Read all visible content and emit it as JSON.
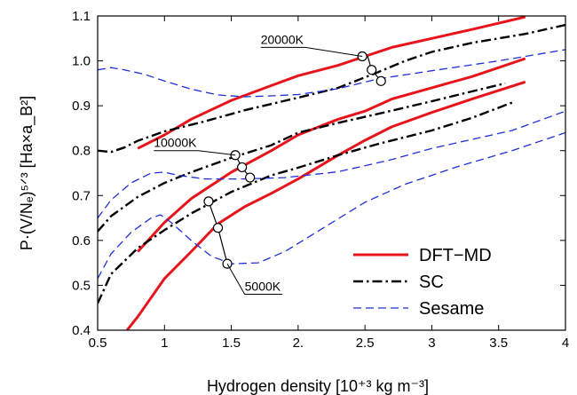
{
  "chart_data": {
    "type": "line",
    "xlabel": "Hydrogen density [10⁺³ kg m⁻³]",
    "ylabel": "P·(V/Nₑ)⁵ᐟ³ [Ha×a_B²]",
    "xlim": [
      0.5,
      4.0
    ],
    "ylim": [
      0.4,
      1.1
    ],
    "x_ticks": [
      {
        "v": 0.5,
        "label": "0.5"
      },
      {
        "v": 1.0,
        "label": "1"
      },
      {
        "v": 1.5,
        "label": "1.5"
      },
      {
        "v": 2.0,
        "label": "2."
      },
      {
        "v": 2.5,
        "label": "2.5"
      },
      {
        "v": 3.0,
        "label": "3"
      },
      {
        "v": 3.5,
        "label": "3.5"
      },
      {
        "v": 4.0,
        "label": "4"
      }
    ],
    "y_ticks": [
      {
        "v": 0.4,
        "label": "0.4"
      },
      {
        "v": 0.5,
        "label": "0.5"
      },
      {
        "v": 0.6,
        "label": "0.6"
      },
      {
        "v": 0.7,
        "label": "0.7"
      },
      {
        "v": 0.8,
        "label": "0.8"
      },
      {
        "v": 0.9,
        "label": "0.9"
      },
      {
        "v": 1.0,
        "label": "1.0"
      },
      {
        "v": 1.1,
        "label": "1.1"
      }
    ],
    "legend_position": "bottom-right",
    "legend": [
      {
        "label": "DFT−MD",
        "style": "solid",
        "color": "#e8141b"
      },
      {
        "label": "SC",
        "style": "dashdot",
        "color": "#000000"
      },
      {
        "label": "Sesame",
        "style": "dashed",
        "color": "#1f2fd8"
      }
    ],
    "series": [
      {
        "name": "DFT−MD",
        "color": "#e8141b",
        "style": "solid",
        "points": [
          [
            0.8,
            0.805
          ],
          [
            1.0,
            0.835
          ],
          [
            1.2,
            0.87
          ],
          [
            1.5,
            0.912
          ],
          [
            1.8,
            0.945
          ],
          [
            2.0,
            0.967
          ],
          [
            2.3,
            0.99
          ],
          [
            2.5,
            1.01
          ],
          [
            2.7,
            1.03
          ],
          [
            3.0,
            1.05
          ],
          [
            3.3,
            1.07
          ],
          [
            3.7,
            1.098
          ]
        ]
      },
      {
        "name": "DFT−MD",
        "color": "#e8141b",
        "style": "solid",
        "points": [
          [
            0.8,
            0.575
          ],
          [
            1.0,
            0.64
          ],
          [
            1.2,
            0.693
          ],
          [
            1.5,
            0.752
          ],
          [
            1.8,
            0.8
          ],
          [
            2.0,
            0.835
          ],
          [
            2.3,
            0.87
          ],
          [
            2.5,
            0.888
          ],
          [
            2.7,
            0.915
          ],
          [
            3.0,
            0.94
          ],
          [
            3.3,
            0.965
          ],
          [
            3.7,
            1.005
          ]
        ]
      },
      {
        "name": "DFT−MD",
        "color": "#e8141b",
        "style": "solid",
        "points": [
          [
            0.72,
            0.4
          ],
          [
            0.8,
            0.43
          ],
          [
            1.0,
            0.515
          ],
          [
            1.2,
            0.575
          ],
          [
            1.4,
            0.637
          ],
          [
            1.6,
            0.675
          ],
          [
            1.8,
            0.705
          ],
          [
            2.0,
            0.737
          ],
          [
            2.3,
            0.79
          ],
          [
            2.5,
            0.823
          ],
          [
            2.7,
            0.853
          ],
          [
            3.0,
            0.885
          ],
          [
            3.3,
            0.915
          ],
          [
            3.7,
            0.953
          ]
        ]
      },
      {
        "name": "SC",
        "color": "#000000",
        "style": "dashdot",
        "points": [
          [
            0.5,
            0.8
          ],
          [
            0.6,
            0.797
          ],
          [
            0.7,
            0.807
          ],
          [
            0.8,
            0.822
          ],
          [
            1.0,
            0.843
          ],
          [
            1.3,
            0.865
          ],
          [
            1.6,
            0.89
          ],
          [
            2.0,
            0.918
          ],
          [
            2.3,
            0.94
          ],
          [
            2.6,
            0.975
          ],
          [
            2.8,
            1.0
          ],
          [
            3.0,
            1.02
          ],
          [
            3.3,
            1.04
          ],
          [
            3.7,
            1.06
          ],
          [
            4.0,
            1.08
          ]
        ]
      },
      {
        "name": "SC",
        "color": "#000000",
        "style": "dashdot",
        "points": [
          [
            0.5,
            0.62
          ],
          [
            0.6,
            0.654
          ],
          [
            0.8,
            0.697
          ],
          [
            1.0,
            0.728
          ],
          [
            1.2,
            0.752
          ],
          [
            1.5,
            0.784
          ],
          [
            1.8,
            0.812
          ],
          [
            2.0,
            0.84
          ],
          [
            2.3,
            0.862
          ],
          [
            2.6,
            0.882
          ],
          [
            3.0,
            0.91
          ],
          [
            3.3,
            0.932
          ],
          [
            3.55,
            0.95
          ]
        ]
      },
      {
        "name": "SC",
        "color": "#000000",
        "style": "dashdot",
        "points": [
          [
            0.5,
            0.46
          ],
          [
            0.6,
            0.525
          ],
          [
            0.8,
            0.583
          ],
          [
            1.0,
            0.623
          ],
          [
            1.2,
            0.66
          ],
          [
            1.5,
            0.708
          ],
          [
            1.8,
            0.745
          ],
          [
            2.0,
            0.762
          ],
          [
            2.3,
            0.79
          ],
          [
            2.6,
            0.815
          ],
          [
            3.0,
            0.845
          ],
          [
            3.3,
            0.873
          ],
          [
            3.6,
            0.907
          ]
        ]
      },
      {
        "name": "Sesame",
        "color": "#1f2fd8",
        "style": "dashed",
        "points": [
          [
            0.5,
            0.98
          ],
          [
            0.6,
            0.985
          ],
          [
            0.7,
            0.98
          ],
          [
            0.85,
            0.97
          ],
          [
            1.0,
            0.955
          ],
          [
            1.2,
            0.937
          ],
          [
            1.4,
            0.924
          ],
          [
            1.6,
            0.92
          ],
          [
            1.8,
            0.922
          ],
          [
            2.0,
            0.925
          ],
          [
            2.3,
            0.938
          ],
          [
            2.6,
            0.96
          ],
          [
            3.0,
            0.978
          ],
          [
            3.5,
            1.0
          ],
          [
            4.0,
            1.025
          ]
        ]
      },
      {
        "name": "Sesame",
        "color": "#1f2fd8",
        "style": "dashed",
        "points": [
          [
            0.5,
            0.65
          ],
          [
            0.6,
            0.69
          ],
          [
            0.75,
            0.728
          ],
          [
            0.9,
            0.75
          ],
          [
            1.0,
            0.752
          ],
          [
            1.1,
            0.745
          ],
          [
            1.3,
            0.737
          ],
          [
            1.6,
            0.737
          ],
          [
            1.9,
            0.74
          ],
          [
            2.3,
            0.753
          ],
          [
            2.7,
            0.78
          ],
          [
            3.0,
            0.805
          ],
          [
            3.3,
            0.825
          ],
          [
            3.6,
            0.845
          ],
          [
            4.0,
            0.888
          ]
        ]
      },
      {
        "name": "Sesame",
        "color": "#1f2fd8",
        "style": "dashed",
        "points": [
          [
            0.5,
            0.515
          ],
          [
            0.6,
            0.57
          ],
          [
            0.75,
            0.618
          ],
          [
            0.9,
            0.65
          ],
          [
            0.97,
            0.657
          ],
          [
            1.05,
            0.64
          ],
          [
            1.2,
            0.6
          ],
          [
            1.35,
            0.565
          ],
          [
            1.5,
            0.548
          ],
          [
            1.7,
            0.55
          ],
          [
            1.9,
            0.575
          ],
          [
            2.2,
            0.63
          ],
          [
            2.5,
            0.685
          ],
          [
            2.8,
            0.725
          ],
          [
            3.2,
            0.765
          ],
          [
            3.6,
            0.8
          ],
          [
            4.0,
            0.84
          ]
        ]
      }
    ],
    "annotations": [
      {
        "label": "20000K",
        "line": [
          [
            2.52,
            1.01
          ],
          [
            2.55,
            0.98
          ],
          [
            2.62,
            0.955
          ]
        ],
        "markers": [
          [
            2.48,
            1.01
          ],
          [
            2.55,
            0.98
          ],
          [
            2.62,
            0.955
          ]
        ],
        "leader_from": [
          2.48,
          1.01
        ],
        "text_at": [
          1.72,
          1.03
        ]
      },
      {
        "label": "10000K",
        "line": [
          [
            1.53,
            0.79
          ],
          [
            1.58,
            0.763
          ],
          [
            1.64,
            0.74
          ]
        ],
        "markers": [
          [
            1.53,
            0.79
          ],
          [
            1.58,
            0.763
          ],
          [
            1.64,
            0.74
          ]
        ],
        "leader_from": [
          1.53,
          0.79
        ],
        "text_at": [
          0.92,
          0.8
        ]
      },
      {
        "label": "5000K",
        "line": [
          [
            1.33,
            0.687
          ],
          [
            1.4,
            0.628
          ],
          [
            1.47,
            0.548
          ]
        ],
        "markers": [
          [
            1.33,
            0.687
          ],
          [
            1.4,
            0.628
          ],
          [
            1.47,
            0.548
          ]
        ],
        "leader_from": [
          1.47,
          0.548
        ],
        "text_at": [
          1.6,
          0.48
        ]
      }
    ]
  }
}
